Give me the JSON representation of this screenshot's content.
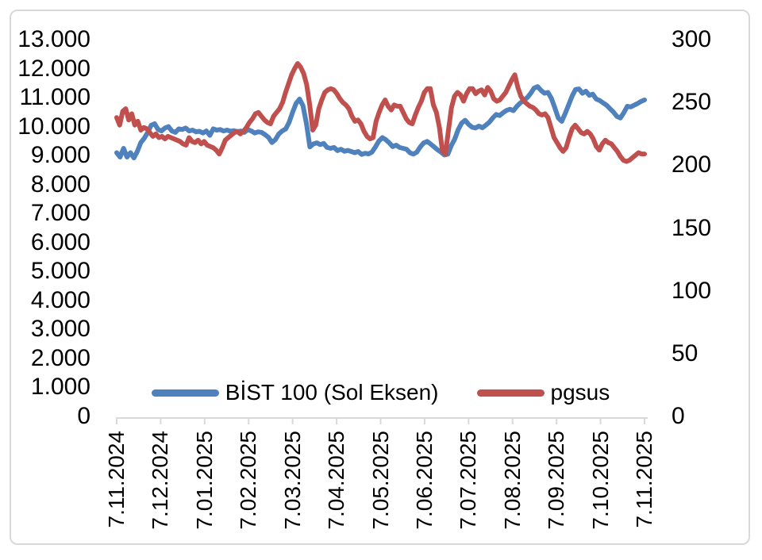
{
  "chart": {
    "title": "",
    "legend": {
      "position": "bottom",
      "items": [
        {
          "label": "BİST 100 (Sol Eksen)",
          "color": "#4f81bd"
        },
        {
          "label": "pgsus",
          "color": "#c0504d"
        }
      ]
    },
    "axis_color": "#d9d9d9"
  },
  "chart_data": {
    "type": "line",
    "title": "",
    "grid": false,
    "legend_position": "bottom",
    "x_axis": {
      "start": "7.11.2024",
      "end": "7.11.2025",
      "labels": [
        "7.11.2024",
        "7.12.2024",
        "7.01.2025",
        "7.02.2025",
        "7.03.2025",
        "7.04.2025",
        "7.05.2025",
        "7.06.2025",
        "7.07.2025",
        "7.08.2025",
        "7.09.2025",
        "7.10.2025",
        "7.11.2025"
      ]
    },
    "left_axis": {
      "min": 0,
      "max": 13000,
      "tick_values": [
        13000,
        12000,
        11000,
        10000,
        9000,
        8000,
        7000,
        6000,
        5000,
        4000,
        3000,
        2000,
        1000,
        0
      ],
      "tick_labels": [
        "13.000",
        "12.000",
        "11.000",
        "10.000",
        "9.000",
        "8.000",
        "7.000",
        "6.000",
        "5.000",
        "4.000",
        "3.000",
        "2.000",
        "1.000",
        "0"
      ]
    },
    "right_axis": {
      "min": 0,
      "max": 300,
      "tick_values": [
        300,
        250,
        200,
        150,
        100,
        50,
        0
      ],
      "tick_labels": [
        "300",
        "250",
        "200",
        "150",
        "100",
        "50",
        "0"
      ]
    },
    "sampling": "uniform from 7.11.2024 to 7.11.2025, values estimated from plot",
    "series": [
      {
        "name": "BİST 100 (Sol Eksen)",
        "axis": "left",
        "color": "#4f81bd",
        "values": [
          9100,
          8950,
          9250,
          8950,
          9100,
          8920,
          9150,
          9450,
          9600,
          9800,
          10050,
          10100,
          9900,
          9850,
          9950,
          10000,
          9850,
          9800,
          9920,
          9900,
          9950,
          9850,
          9880,
          9820,
          9840,
          9780,
          9850,
          9700,
          9920,
          9880,
          9900,
          9850,
          9880,
          9840,
          9860,
          9820,
          9850,
          9800,
          9900,
          9850,
          9780,
          9820,
          9800,
          9720,
          9630,
          9450,
          9550,
          9750,
          9850,
          9920,
          10150,
          10500,
          10800,
          10950,
          10720,
          10100,
          9300,
          9400,
          9440,
          9380,
          9420,
          9280,
          9250,
          9280,
          9170,
          9220,
          9150,
          9180,
          9140,
          9100,
          9140,
          9040,
          9080,
          9060,
          9120,
          9300,
          9500,
          9620,
          9550,
          9440,
          9310,
          9360,
          9280,
          9250,
          9220,
          9100,
          9050,
          9120,
          9300,
          9440,
          9490,
          9400,
          9300,
          9200,
          9120,
          9020,
          9050,
          9350,
          9570,
          9900,
          10120,
          10220,
          10080,
          9980,
          9950,
          10020,
          9960,
          10050,
          10150,
          10300,
          10420,
          10380,
          10480,
          10560,
          10600,
          10550,
          10700,
          10820,
          10900,
          11000,
          11150,
          11330,
          11380,
          11250,
          11150,
          11180,
          10980,
          10650,
          10300,
          10180,
          10450,
          10750,
          11050,
          11280,
          11300,
          11150,
          11220,
          11080,
          11120,
          10950,
          10900,
          10820,
          10740,
          10620,
          10500,
          10350,
          10300,
          10480,
          10700,
          10680,
          10740,
          10800,
          10870,
          10920
        ]
      },
      {
        "name": "pgsus",
        "axis": "right",
        "color": "#c0504d",
        "values": [
          238,
          232,
          243,
          245,
          236,
          241,
          232,
          235,
          228,
          230,
          229,
          226,
          223,
          225,
          222,
          223,
          221,
          223,
          222,
          221,
          220,
          219,
          217,
          216,
          222,
          219,
          218,
          220,
          217,
          219,
          216,
          215,
          214,
          212,
          209,
          214,
          220,
          222,
          224,
          226,
          227,
          225,
          227,
          230,
          234,
          237,
          241,
          242,
          239,
          236,
          234,
          233,
          239,
          242,
          245,
          250,
          258,
          265,
          272,
          277,
          281,
          278,
          273,
          264,
          248,
          228,
          232,
          245,
          252,
          258,
          260,
          261,
          260,
          257,
          253,
          250,
          248,
          245,
          239,
          235,
          236,
          233,
          227,
          223,
          221,
          222,
          235,
          242,
          248,
          252,
          247,
          244,
          248,
          247,
          247,
          242,
          237,
          234,
          233,
          240,
          246,
          251,
          258,
          261,
          261,
          248,
          242,
          230,
          211,
          209,
          228,
          246,
          255,
          258,
          256,
          251,
          257,
          261,
          261,
          257,
          259,
          260,
          256,
          262,
          259,
          253,
          251,
          252,
          255,
          258,
          263,
          268,
          272,
          262,
          255,
          251,
          249,
          247,
          246,
          244,
          241,
          240,
          241,
          238,
          230,
          222,
          218,
          214,
          211,
          214,
          222,
          229,
          232,
          229,
          226,
          225,
          227,
          225,
          221,
          215,
          212,
          217,
          220,
          218,
          217,
          214,
          211,
          207,
          204,
          203,
          204,
          206,
          208,
          210,
          209,
          209
        ]
      }
    ]
  }
}
